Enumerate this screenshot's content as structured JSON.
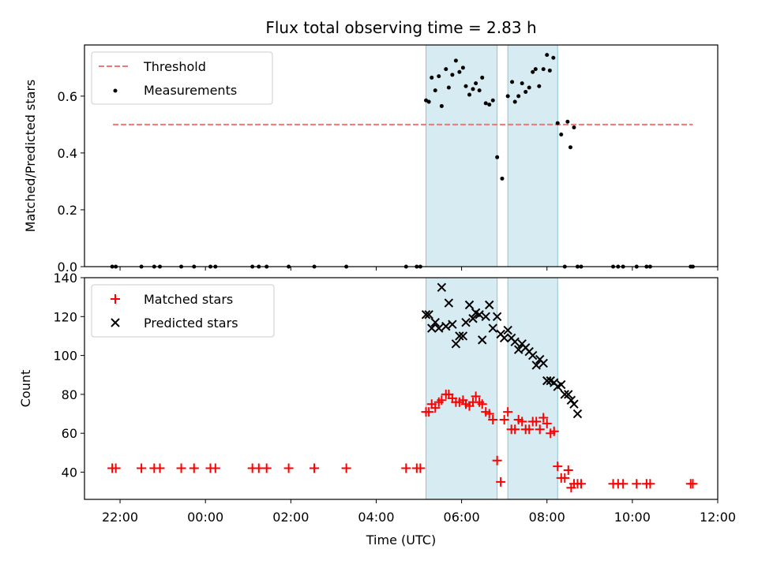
{
  "figure": {
    "title": "Flux total observing time = 2.83 h",
    "xlabel": "Time (UTC)"
  },
  "chart_data": [
    {
      "type": "scatter",
      "ylabel": "Matched/Predicted stars",
      "xlim": [
        "2023-01-01 21:10",
        "2023-01-02 12:00"
      ],
      "ylim": [
        0,
        0.78
      ],
      "yticks": [
        0.0,
        0.2,
        0.4,
        0.6
      ],
      "ytick_labels": [
        "0.0",
        "0.2",
        "0.4",
        "0.6"
      ],
      "legend": {
        "placement": "upper-left"
      },
      "shaded_intervals": [
        {
          "start": "2023-01-02 05:10",
          "end": "2023-01-02 06:50"
        },
        {
          "start": "2023-01-02 07:05",
          "end": "2023-01-02 08:15"
        }
      ],
      "threshold": {
        "name": "Threshold",
        "value": 0.5,
        "x_start": "2023-01-01 21:50",
        "x_end": "2023-01-02 11:25",
        "color": "#ff7070",
        "style": "dashed"
      },
      "series": [
        {
          "name": "Measurements",
          "color": "#000000",
          "marker": "dot",
          "points": [
            [
              "2023-01-01 21:49",
              0
            ],
            [
              "2023-01-01 21:54",
              0
            ],
            [
              "2023-01-01 22:30",
              0
            ],
            [
              "2023-01-01 22:48",
              0
            ],
            [
              "2023-01-01 22:56",
              0
            ],
            [
              "2023-01-01 23:26",
              0
            ],
            [
              "2023-01-01 23:44",
              0
            ],
            [
              "2023-01-02 00:07",
              0
            ],
            [
              "2023-01-02 00:14",
              0
            ],
            [
              "2023-01-02 01:06",
              0
            ],
            [
              "2023-01-02 01:15",
              0
            ],
            [
              "2023-01-02 01:26",
              0
            ],
            [
              "2023-01-02 01:57",
              0
            ],
            [
              "2023-01-02 02:33",
              0
            ],
            [
              "2023-01-02 03:18",
              0
            ],
            [
              "2023-01-02 04:42",
              0
            ],
            [
              "2023-01-02 04:57",
              0
            ],
            [
              "2023-01-02 05:02",
              0
            ],
            [
              "2023-01-02 05:10",
              0.585
            ],
            [
              "2023-01-02 05:14",
              0.58
            ],
            [
              "2023-01-02 05:18",
              0.665
            ],
            [
              "2023-01-02 05:23",
              0.62
            ],
            [
              "2023-01-02 05:28",
              0.67
            ],
            [
              "2023-01-02 05:32",
              0.565
            ],
            [
              "2023-01-02 05:38",
              0.695
            ],
            [
              "2023-01-02 05:42",
              0.63
            ],
            [
              "2023-01-02 05:47",
              0.675
            ],
            [
              "2023-01-02 05:52",
              0.725
            ],
            [
              "2023-01-02 05:57",
              0.685
            ],
            [
              "2023-01-02 06:02",
              0.7
            ],
            [
              "2023-01-02 06:06",
              0.635
            ],
            [
              "2023-01-02 06:11",
              0.605
            ],
            [
              "2023-01-02 06:16",
              0.625
            ],
            [
              "2023-01-02 06:20",
              0.645
            ],
            [
              "2023-01-02 06:25",
              0.62
            ],
            [
              "2023-01-02 06:29",
              0.665
            ],
            [
              "2023-01-02 06:34",
              0.575
            ],
            [
              "2023-01-02 06:39",
              0.57
            ],
            [
              "2023-01-02 06:44",
              0.585
            ],
            [
              "2023-01-02 06:50",
              0.385
            ],
            [
              "2023-01-02 06:57",
              0.31
            ],
            [
              "2023-01-02 07:05",
              0.6
            ],
            [
              "2023-01-02 07:11",
              0.65
            ],
            [
              "2023-01-02 07:15",
              0.58
            ],
            [
              "2023-01-02 07:20",
              0.6
            ],
            [
              "2023-01-02 07:25",
              0.645
            ],
            [
              "2023-01-02 07:30",
              0.615
            ],
            [
              "2023-01-02 07:35",
              0.63
            ],
            [
              "2023-01-02 07:40",
              0.685
            ],
            [
              "2023-01-02 07:44",
              0.695
            ],
            [
              "2023-01-02 07:49",
              0.635
            ],
            [
              "2023-01-02 07:55",
              0.695
            ],
            [
              "2023-01-02 08:00",
              0.745
            ],
            [
              "2023-01-02 08:04",
              0.69
            ],
            [
              "2023-01-02 08:09",
              0.735
            ],
            [
              "2023-01-02 08:15",
              0.505
            ],
            [
              "2023-01-02 08:20",
              0.465
            ],
            [
              "2023-01-02 08:25",
              0.0
            ],
            [
              "2023-01-02 08:29",
              0.51
            ],
            [
              "2023-01-02 08:33",
              0.42
            ],
            [
              "2023-01-02 08:38",
              0.49
            ],
            [
              "2023-01-02 08:43",
              0
            ],
            [
              "2023-01-02 08:48",
              0
            ],
            [
              "2023-01-02 09:33",
              0
            ],
            [
              "2023-01-02 09:40",
              0
            ],
            [
              "2023-01-02 09:47",
              0
            ],
            [
              "2023-01-02 10:06",
              0
            ],
            [
              "2023-01-02 10:20",
              0
            ],
            [
              "2023-01-02 10:25",
              0
            ],
            [
              "2023-01-02 11:22",
              0
            ],
            [
              "2023-01-02 11:25",
              0
            ]
          ]
        }
      ]
    },
    {
      "type": "scatter",
      "ylabel": "Count",
      "xlim": [
        "2023-01-01 21:10",
        "2023-01-02 12:00"
      ],
      "ylim": [
        26,
        140
      ],
      "yticks": [
        40,
        60,
        80,
        100,
        120,
        140
      ],
      "ytick_labels": [
        "40",
        "60",
        "80",
        "100",
        "120",
        "140"
      ],
      "xticks": [
        "2023-01-01 22:00",
        "2023-01-02 00:00",
        "2023-01-02 02:00",
        "2023-01-02 04:00",
        "2023-01-02 06:00",
        "2023-01-02 08:00",
        "2023-01-02 10:00",
        "2023-01-02 12:00"
      ],
      "xtick_labels": [
        "22:00",
        "00:00",
        "02:00",
        "04:00",
        "06:00",
        "08:00",
        "10:00",
        "12:00"
      ],
      "legend": {
        "placement": "upper-left"
      },
      "shaded_intervals": [
        {
          "start": "2023-01-02 05:10",
          "end": "2023-01-02 06:50"
        },
        {
          "start": "2023-01-02 07:05",
          "end": "2023-01-02 08:15"
        }
      ],
      "series": [
        {
          "name": "Matched stars",
          "color": "#ff0000",
          "marker": "plus",
          "points": [
            [
              "2023-01-01 21:49",
              42
            ],
            [
              "2023-01-01 21:54",
              42
            ],
            [
              "2023-01-01 22:30",
              42
            ],
            [
              "2023-01-01 22:48",
              42
            ],
            [
              "2023-01-01 22:56",
              42
            ],
            [
              "2023-01-01 23:26",
              42
            ],
            [
              "2023-01-01 23:44",
              42
            ],
            [
              "2023-01-02 00:07",
              42
            ],
            [
              "2023-01-02 00:14",
              42
            ],
            [
              "2023-01-02 01:06",
              42
            ],
            [
              "2023-01-02 01:15",
              42
            ],
            [
              "2023-01-02 01:26",
              42
            ],
            [
              "2023-01-02 01:57",
              42
            ],
            [
              "2023-01-02 02:33",
              42
            ],
            [
              "2023-01-02 03:18",
              42
            ],
            [
              "2023-01-02 04:42",
              42
            ],
            [
              "2023-01-02 04:57",
              42
            ],
            [
              "2023-01-02 05:02",
              42
            ],
            [
              "2023-01-02 05:10",
              71
            ],
            [
              "2023-01-02 05:14",
              71
            ],
            [
              "2023-01-02 05:18",
              75
            ],
            [
              "2023-01-02 05:23",
              73
            ],
            [
              "2023-01-02 05:28",
              76
            ],
            [
              "2023-01-02 05:32",
              77
            ],
            [
              "2023-01-02 05:38",
              80
            ],
            [
              "2023-01-02 05:42",
              80
            ],
            [
              "2023-01-02 05:47",
              78
            ],
            [
              "2023-01-02 05:52",
              76
            ],
            [
              "2023-01-02 05:57",
              76
            ],
            [
              "2023-01-02 06:02",
              77
            ],
            [
              "2023-01-02 06:06",
              75
            ],
            [
              "2023-01-02 06:11",
              74
            ],
            [
              "2023-01-02 06:16",
              76
            ],
            [
              "2023-01-02 06:20",
              79
            ],
            [
              "2023-01-02 06:25",
              76
            ],
            [
              "2023-01-02 06:29",
              75
            ],
            [
              "2023-01-02 06:34",
              71
            ],
            [
              "2023-01-02 06:39",
              70
            ],
            [
              "2023-01-02 06:44",
              67
            ],
            [
              "2023-01-02 06:50",
              46
            ],
            [
              "2023-01-02 06:55",
              35
            ],
            [
              "2023-01-02 07:00",
              67
            ],
            [
              "2023-01-02 07:05",
              71
            ],
            [
              "2023-01-02 07:10",
              62
            ],
            [
              "2023-01-02 07:15",
              62
            ],
            [
              "2023-01-02 07:20",
              67
            ],
            [
              "2023-01-02 07:25",
              66
            ],
            [
              "2023-01-02 07:30",
              62
            ],
            [
              "2023-01-02 07:35",
              62
            ],
            [
              "2023-01-02 07:40",
              66
            ],
            [
              "2023-01-02 07:45",
              66
            ],
            [
              "2023-01-02 07:50",
              62
            ],
            [
              "2023-01-02 07:55",
              68
            ],
            [
              "2023-01-02 08:00",
              65
            ],
            [
              "2023-01-02 08:05",
              60
            ],
            [
              "2023-01-02 08:10",
              61
            ],
            [
              "2023-01-02 08:15",
              43
            ],
            [
              "2023-01-02 08:20",
              37
            ],
            [
              "2023-01-02 08:25",
              37
            ],
            [
              "2023-01-02 08:30",
              41
            ],
            [
              "2023-01-02 08:34",
              32
            ],
            [
              "2023-01-02 08:38",
              34
            ],
            [
              "2023-01-02 08:43",
              34
            ],
            [
              "2023-01-02 08:48",
              34
            ],
            [
              "2023-01-02 09:33",
              34
            ],
            [
              "2023-01-02 09:40",
              34
            ],
            [
              "2023-01-02 09:47",
              34
            ],
            [
              "2023-01-02 10:06",
              34
            ],
            [
              "2023-01-02 10:20",
              34
            ],
            [
              "2023-01-02 10:25",
              34
            ],
            [
              "2023-01-02 11:22",
              34
            ],
            [
              "2023-01-02 11:25",
              34
            ]
          ]
        },
        {
          "name": "Predicted stars",
          "color": "#000000",
          "marker": "x",
          "points": [
            [
              "2023-01-02 05:10",
              121
            ],
            [
              "2023-01-02 05:14",
              121
            ],
            [
              "2023-01-02 05:18",
              114
            ],
            [
              "2023-01-02 05:23",
              117
            ],
            [
              "2023-01-02 05:28",
              114
            ],
            [
              "2023-01-02 05:32",
              135
            ],
            [
              "2023-01-02 05:38",
              115
            ],
            [
              "2023-01-02 05:42",
              127
            ],
            [
              "2023-01-02 05:47",
              116
            ],
            [
              "2023-01-02 05:52",
              106
            ],
            [
              "2023-01-02 05:57",
              110
            ],
            [
              "2023-01-02 06:02",
              110
            ],
            [
              "2023-01-02 06:06",
              117
            ],
            [
              "2023-01-02 06:11",
              126
            ],
            [
              "2023-01-02 06:16",
              119
            ],
            [
              "2023-01-02 06:20",
              122
            ],
            [
              "2023-01-02 06:25",
              121
            ],
            [
              "2023-01-02 06:29",
              108
            ],
            [
              "2023-01-02 06:34",
              120
            ],
            [
              "2023-01-02 06:39",
              126
            ],
            [
              "2023-01-02 06:44",
              114
            ],
            [
              "2023-01-02 06:50",
              120
            ],
            [
              "2023-01-02 06:55",
              111
            ],
            [
              "2023-01-02 07:00",
              109
            ],
            [
              "2023-01-02 07:05",
              113
            ],
            [
              "2023-01-02 07:10",
              109
            ],
            [
              "2023-01-02 07:15",
              107
            ],
            [
              "2023-01-02 07:20",
              103
            ],
            [
              "2023-01-02 07:25",
              106
            ],
            [
              "2023-01-02 07:30",
              104
            ],
            [
              "2023-01-02 07:35",
              102
            ],
            [
              "2023-01-02 07:40",
              100
            ],
            [
              "2023-01-02 07:45",
              95
            ],
            [
              "2023-01-02 07:50",
              98
            ],
            [
              "2023-01-02 07:55",
              96
            ],
            [
              "2023-01-02 08:00",
              87
            ],
            [
              "2023-01-02 08:05",
              87
            ],
            [
              "2023-01-02 08:10",
              86
            ],
            [
              "2023-01-02 08:15",
              84
            ],
            [
              "2023-01-02 08:20",
              85
            ],
            [
              "2023-01-02 08:25",
              80
            ],
            [
              "2023-01-02 08:30",
              80
            ],
            [
              "2023-01-02 08:34",
              77
            ],
            [
              "2023-01-02 08:38",
              75
            ],
            [
              "2023-01-02 08:43",
              70
            ]
          ]
        }
      ]
    }
  ]
}
